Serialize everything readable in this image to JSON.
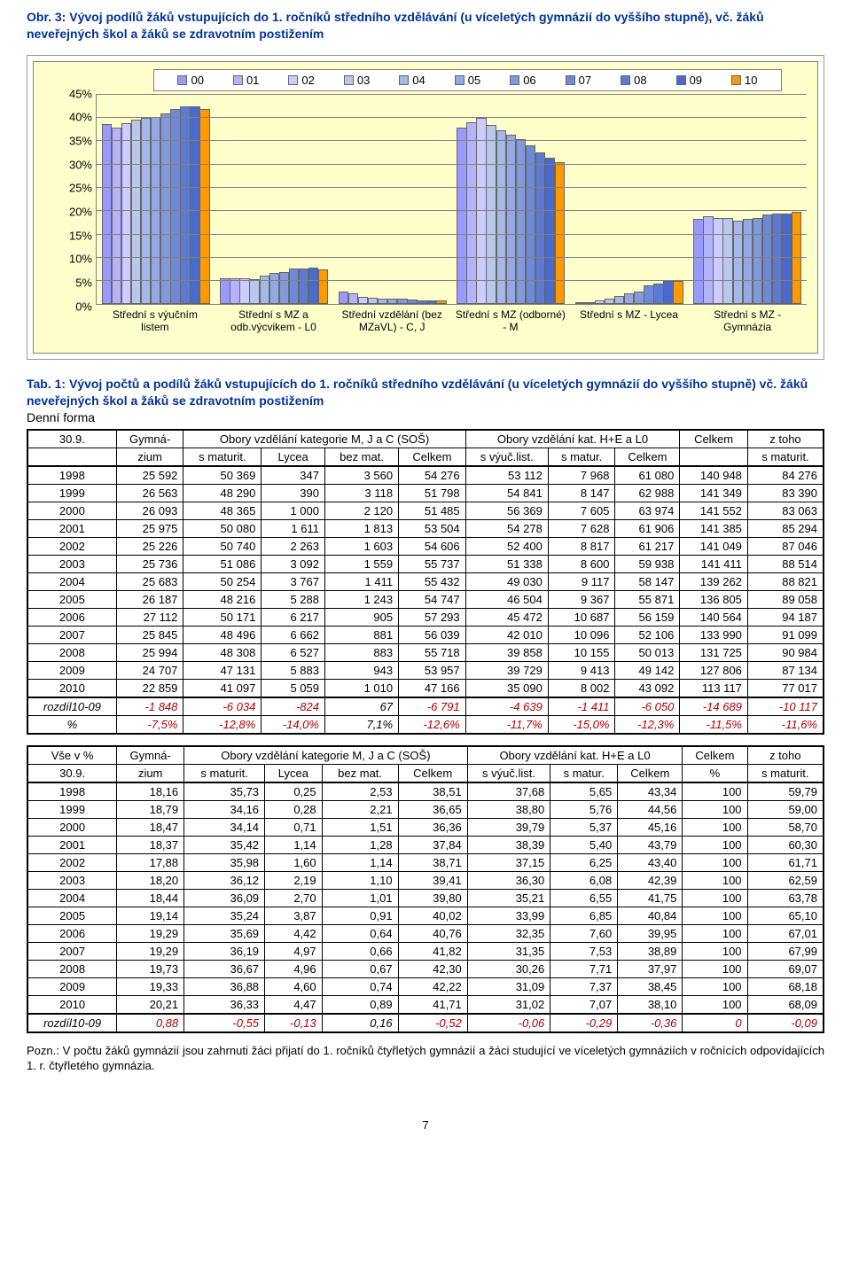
{
  "title": "Obr. 3: Vývoj podílů žáků vstupujících do 1. ročníků středního vzdělávání (u víceletých gymnázií do vyššího stupně), vč. žáků neveřejných škol a žáků se zdravotním postižením",
  "chart": {
    "type": "bar",
    "background_color": "#ffffcc",
    "grid_color": "#808080",
    "ymax": 45,
    "ystep": 5,
    "series_labels": [
      "00",
      "01",
      "02",
      "03",
      "04",
      "05",
      "06",
      "07",
      "08",
      "09",
      "10"
    ],
    "series_colors": [
      "#9999ff",
      "#b3b3ff",
      "#ccccff",
      "#b9c7ed",
      "#a6b8e8",
      "#94a8e3",
      "#8199dd",
      "#6f89d8",
      "#5c7ad3",
      "#4a6bce",
      "#ff9900"
    ],
    "series_border": "#666666",
    "categories": [
      "Střední s výučním listem",
      "Střední s MZ a odb.výcvikem - L0",
      "Střední vzdělání (bez MZaVL) - C, J",
      "Střední s MZ (odborné) - M",
      "Střední s MZ - Lycea",
      "Střední s MZ - Gymnázia"
    ],
    "values": [
      [
        38.51,
        37.84,
        38.71,
        39.41,
        39.8,
        40.02,
        40.76,
        41.82,
        42.3,
        42.22,
        41.71
      ],
      [
        5.55,
        5.4,
        5.39,
        5.37,
        6.08,
        6.55,
        6.85,
        7.6,
        7.53,
        7.71,
        7.37
      ],
      [
        2.53,
        2.21,
        1.51,
        1.28,
        1.14,
        1.1,
        1.01,
        0.91,
        0.64,
        0.66,
        0.67
      ],
      [
        37.68,
        38.8,
        39.79,
        38.39,
        37.15,
        36.3,
        35.21,
        33.99,
        32.35,
        31.35,
        30.26
      ],
      [
        0.25,
        0.28,
        0.71,
        1.14,
        1.6,
        2.19,
        2.7,
        3.87,
        4.42,
        4.97,
        4.96
      ],
      [
        18.16,
        18.79,
        18.47,
        18.37,
        17.88,
        18.2,
        18.44,
        19.14,
        19.29,
        19.29,
        19.73
      ]
    ]
  },
  "subtitle_main": "Tab. 1: Vývoj počtů a podílů žáků vstupujících do 1. ročníků středního vzdělávání (u víceletých gymnázií do vyššího stupně) vč. žáků neveřejných škol a žáků se zdravotním postižením",
  "subtitle_form": "Denní forma",
  "table1": {
    "header_top": [
      "30.9.",
      "Gymná-",
      "Obory vzdělání kategorie M, J a C (SOŠ)",
      "",
      "",
      "",
      "Obory vzdělání kat. H+E a L0",
      "",
      "",
      "Celkem",
      "z toho"
    ],
    "header_bot": [
      "",
      "zium",
      "s maturit.",
      "Lycea",
      "bez mat.",
      "Celkem",
      "s výuč.list.",
      "s matur.",
      "Celkem",
      "",
      "s maturit."
    ],
    "rows": [
      [
        "1998",
        "25 592",
        "50 369",
        "347",
        "3 560",
        "54 276",
        "53 112",
        "7 968",
        "61 080",
        "140 948",
        "84 276"
      ],
      [
        "1999",
        "26 563",
        "48 290",
        "390",
        "3 118",
        "51 798",
        "54 841",
        "8 147",
        "62 988",
        "141 349",
        "83 390"
      ],
      [
        "2000",
        "26 093",
        "48 365",
        "1 000",
        "2 120",
        "51 485",
        "56 369",
        "7 605",
        "63 974",
        "141 552",
        "83 063"
      ],
      [
        "2001",
        "25 975",
        "50 080",
        "1 611",
        "1 813",
        "53 504",
        "54 278",
        "7 628",
        "61 906",
        "141 385",
        "85 294"
      ],
      [
        "2002",
        "25 226",
        "50 740",
        "2 263",
        "1 603",
        "54 606",
        "52 400",
        "8 817",
        "61 217",
        "141 049",
        "87 046"
      ],
      [
        "2003",
        "25 736",
        "51 086",
        "3 092",
        "1 559",
        "55 737",
        "51 338",
        "8 600",
        "59 938",
        "141 411",
        "88 514"
      ],
      [
        "2004",
        "25 683",
        "50 254",
        "3 767",
        "1 411",
        "55 432",
        "49 030",
        "9 117",
        "58 147",
        "139 262",
        "88 821"
      ],
      [
        "2005",
        "26 187",
        "48 216",
        "5 288",
        "1 243",
        "54 747",
        "46 504",
        "9 367",
        "55 871",
        "136 805",
        "89 058"
      ],
      [
        "2006",
        "27 112",
        "50 171",
        "6 217",
        "905",
        "57 293",
        "45 472",
        "10 687",
        "56 159",
        "140 564",
        "94 187"
      ],
      [
        "2007",
        "25 845",
        "48 496",
        "6 662",
        "881",
        "56 039",
        "42 010",
        "10 096",
        "52 106",
        "133 990",
        "91 099"
      ],
      [
        "2008",
        "25 994",
        "48 308",
        "6 527",
        "883",
        "55 718",
        "39 858",
        "10 155",
        "50 013",
        "131 725",
        "90 984"
      ],
      [
        "2009",
        "24 707",
        "47 131",
        "5 883",
        "943",
        "53 957",
        "39 729",
        "9 413",
        "49 142",
        "127 806",
        "87 134"
      ],
      [
        "2010",
        "22 859",
        "41 097",
        "5 059",
        "1 010",
        "47 166",
        "35 090",
        "8 002",
        "43 092",
        "113 117",
        "77 017"
      ]
    ],
    "diff_row": [
      "rozdíl10-09",
      "-1 848",
      "-6 034",
      "-824",
      "67",
      "-6 791",
      "-4 639",
      "-1 411",
      "-6 050",
      "-14 689",
      "-10 117"
    ],
    "pct_row": [
      "%",
      "-7,5%",
      "-12,8%",
      "-14,0%",
      "7,1%",
      "-12,6%",
      "-11,7%",
      "-15,0%",
      "-12,3%",
      "-11,5%",
      "-11,6%"
    ]
  },
  "table2": {
    "header_top": [
      "Vše v %",
      "Gymná-",
      "Obory vzdělání kategorie M, J a C (SOŠ)",
      "",
      "",
      "",
      "Obory vzdělání kat. H+E a L0",
      "",
      "",
      "Celkem",
      "z toho"
    ],
    "header_bot": [
      "30.9.",
      "zium",
      "s maturit.",
      "Lycea",
      "bez mat.",
      "Celkem",
      "s výuč.list.",
      "s matur.",
      "Celkem",
      "%",
      "s maturit."
    ],
    "rows": [
      [
        "1998",
        "18,16",
        "35,73",
        "0,25",
        "2,53",
        "38,51",
        "37,68",
        "5,65",
        "43,34",
        "100",
        "59,79"
      ],
      [
        "1999",
        "18,79",
        "34,16",
        "0,28",
        "2,21",
        "36,65",
        "38,80",
        "5,76",
        "44,56",
        "100",
        "59,00"
      ],
      [
        "2000",
        "18,47",
        "34,14",
        "0,71",
        "1,51",
        "36,36",
        "39,79",
        "5,37",
        "45,16",
        "100",
        "58,70"
      ],
      [
        "2001",
        "18,37",
        "35,42",
        "1,14",
        "1,28",
        "37,84",
        "38,39",
        "5,40",
        "43,79",
        "100",
        "60,30"
      ],
      [
        "2002",
        "17,88",
        "35,98",
        "1,60",
        "1,14",
        "38,71",
        "37,15",
        "6,25",
        "43,40",
        "100",
        "61,71"
      ],
      [
        "2003",
        "18,20",
        "36,12",
        "2,19",
        "1,10",
        "39,41",
        "36,30",
        "6,08",
        "42,39",
        "100",
        "62,59"
      ],
      [
        "2004",
        "18,44",
        "36,09",
        "2,70",
        "1,01",
        "39,80",
        "35,21",
        "6,55",
        "41,75",
        "100",
        "63,78"
      ],
      [
        "2005",
        "19,14",
        "35,24",
        "3,87",
        "0,91",
        "40,02",
        "33,99",
        "6,85",
        "40,84",
        "100",
        "65,10"
      ],
      [
        "2006",
        "19,29",
        "35,69",
        "4,42",
        "0,64",
        "40,76",
        "32,35",
        "7,60",
        "39,95",
        "100",
        "67,01"
      ],
      [
        "2007",
        "19,29",
        "36,19",
        "4,97",
        "0,66",
        "41,82",
        "31,35",
        "7,53",
        "38,89",
        "100",
        "67,99"
      ],
      [
        "2008",
        "19,73",
        "36,67",
        "4,96",
        "0,67",
        "42,30",
        "30,26",
        "7,71",
        "37,97",
        "100",
        "69,07"
      ],
      [
        "2009",
        "19,33",
        "36,88",
        "4,60",
        "0,74",
        "42,22",
        "31,09",
        "7,37",
        "38,45",
        "100",
        "68,18"
      ],
      [
        "2010",
        "20,21",
        "36,33",
        "4,47",
        "0,89",
        "41,71",
        "31,02",
        "7,07",
        "38,10",
        "100",
        "68,09"
      ]
    ],
    "diff_row": [
      "rozdíl10-09",
      "0,88",
      "-0,55",
      "-0,13",
      "0,16",
      "-0,52",
      "-0,06",
      "-0,29",
      "-0,36",
      "0",
      "-0,09"
    ]
  },
  "note": "Pozn.: V počtu žáků gymnázií jsou zahrnuti žáci přijatí do 1. ročníků čtyřletých gymnázií a žáci studující ve víceletých gymnáziích v ročnících odpovídajících 1. r. čtyřletého gymnázia.",
  "page_number": "7"
}
